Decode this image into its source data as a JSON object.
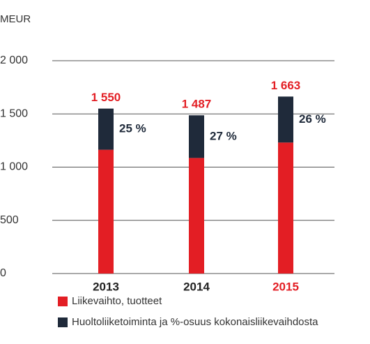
{
  "chart_data": {
    "type": "stacked_bar",
    "y_unit": "MEUR",
    "categories": [
      "2013",
      "2014",
      "2015"
    ],
    "category_label_colors": [
      "#222222",
      "#222222",
      "#e31e24"
    ],
    "series": [
      {
        "name": "Liikevaihto, tuotteet",
        "color": "#e31e24",
        "values": [
          1163,
          1086,
          1231
        ]
      },
      {
        "name": "Huoltoliiketoiminta ja %-osuus kokonaisliikevaihdosta",
        "color": "#1f2a3a",
        "values": [
          387,
          401,
          432
        ],
        "shares": [
          25,
          27,
          26
        ],
        "share_labels": [
          "25 %",
          "27 %",
          "26 %"
        ]
      }
    ],
    "totals": [
      1550,
      1487,
      1663
    ],
    "total_labels": [
      "1 550",
      "1 487",
      "1 663"
    ],
    "total_label_color": "#e31e24",
    "ylim": [
      0,
      2000
    ],
    "yticks": [
      0,
      500,
      {
        "value": 1000,
        "label": "1 000"
      },
      {
        "value": 1500,
        "label": "1 500"
      },
      {
        "value": 2000,
        "label": "2 000"
      }
    ],
    "grid": true
  }
}
